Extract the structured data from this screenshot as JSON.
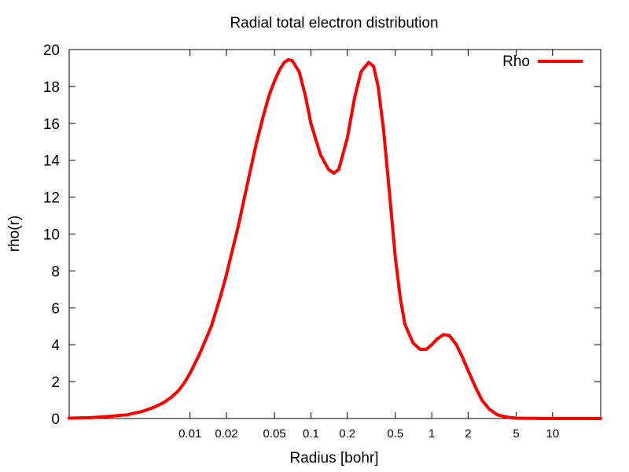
{
  "chart_data": {
    "type": "line",
    "title": "Radial total electron distribution",
    "xlabel": "Radius [bohr]",
    "ylabel": "rho(r)",
    "xscale": "log",
    "xlim": [
      0.001,
      25
    ],
    "ylim": [
      0,
      20
    ],
    "x_ticks": [
      0.01,
      0.02,
      0.05,
      0.1,
      0.2,
      0.5,
      1,
      2,
      5,
      10
    ],
    "x_tick_labels": [
      "0.01",
      "0.02",
      "0.05",
      "0.1",
      "0.2",
      "0.5",
      "1",
      "2",
      "5",
      "10"
    ],
    "y_ticks": [
      0,
      2,
      4,
      6,
      8,
      10,
      12,
      14,
      16,
      18,
      20
    ],
    "grid": false,
    "legend_position": "top-right",
    "series": [
      {
        "name": "Rho",
        "color": "#ff0000",
        "x": [
          0.001,
          0.0015,
          0.002,
          0.003,
          0.004,
          0.005,
          0.006,
          0.007,
          0.008,
          0.009,
          0.01,
          0.012,
          0.015,
          0.018,
          0.02,
          0.025,
          0.03,
          0.035,
          0.04,
          0.045,
          0.05,
          0.055,
          0.06,
          0.065,
          0.07,
          0.08,
          0.09,
          0.1,
          0.12,
          0.14,
          0.155,
          0.17,
          0.2,
          0.23,
          0.26,
          0.3,
          0.33,
          0.36,
          0.4,
          0.45,
          0.5,
          0.55,
          0.6,
          0.7,
          0.8,
          0.9,
          1.0,
          1.1,
          1.25,
          1.4,
          1.6,
          1.8,
          2.0,
          2.3,
          2.6,
          3.0,
          3.5,
          4.0,
          4.5,
          5.0,
          6.0,
          7.0,
          8.0,
          10.0,
          15.0,
          25.0
        ],
        "y": [
          0.02,
          0.05,
          0.1,
          0.2,
          0.38,
          0.6,
          0.85,
          1.15,
          1.5,
          1.95,
          2.45,
          3.5,
          5.0,
          6.7,
          7.8,
          10.4,
          12.8,
          14.8,
          16.3,
          17.5,
          18.3,
          18.9,
          19.3,
          19.45,
          19.4,
          18.8,
          17.5,
          16.0,
          14.3,
          13.5,
          13.3,
          13.5,
          15.2,
          17.4,
          18.8,
          19.3,
          19.1,
          18.0,
          15.6,
          12.0,
          8.7,
          6.5,
          5.1,
          4.1,
          3.75,
          3.75,
          4.0,
          4.3,
          4.55,
          4.5,
          4.0,
          3.3,
          2.6,
          1.7,
          1.0,
          0.5,
          0.2,
          0.1,
          0.05,
          0.02,
          0.01,
          0.01,
          0.0,
          0.0,
          0.0,
          0.0
        ]
      }
    ]
  }
}
